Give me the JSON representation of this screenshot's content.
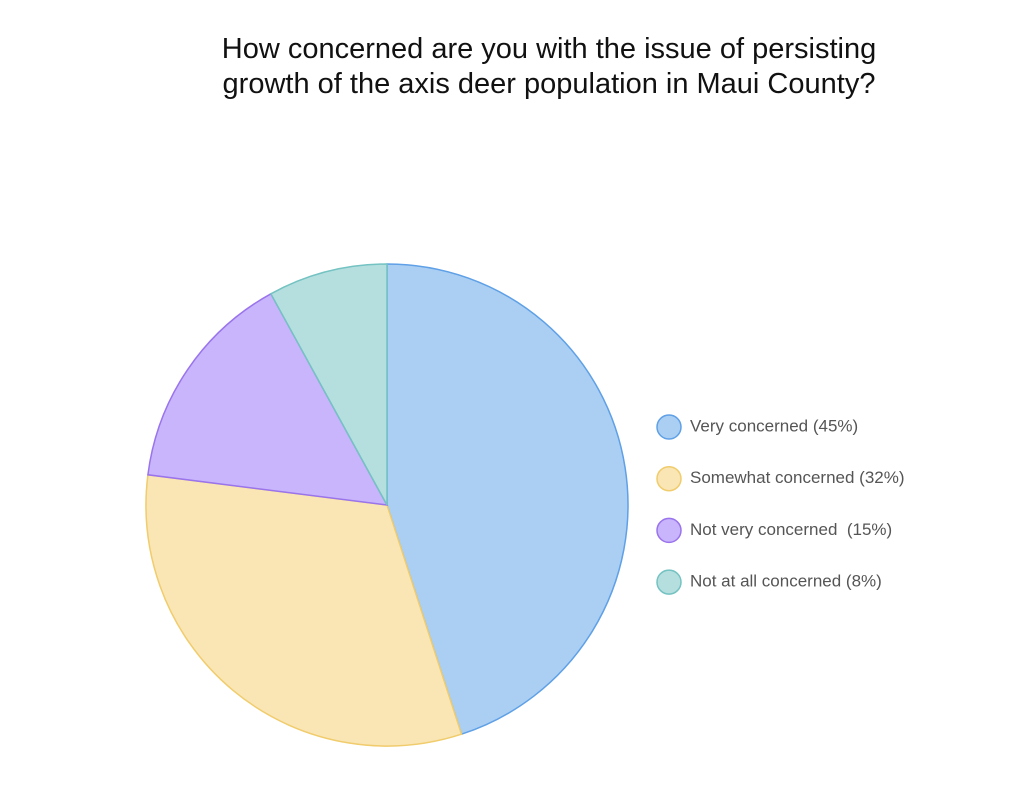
{
  "chart_data": {
    "type": "pie",
    "title": [
      "How concerned are you with the issue of persisting",
      "growth of the axis deer population in Maui County?"
    ],
    "categories": [
      "Very concerned (45%)",
      "Somewhat concerned (32%)",
      "Not very concerned  (15%)",
      "Not at all concerned (8%)"
    ],
    "values": [
      45,
      32,
      15,
      8
    ],
    "colors": [
      "#abcff3",
      "#fae5b4",
      "#c9b5fb",
      "#b5dfdf"
    ],
    "border_colors": [
      "#5fa0e6",
      "#f0cc6c",
      "#9a74ec",
      "#74c2c2"
    ],
    "legend": "right"
  }
}
